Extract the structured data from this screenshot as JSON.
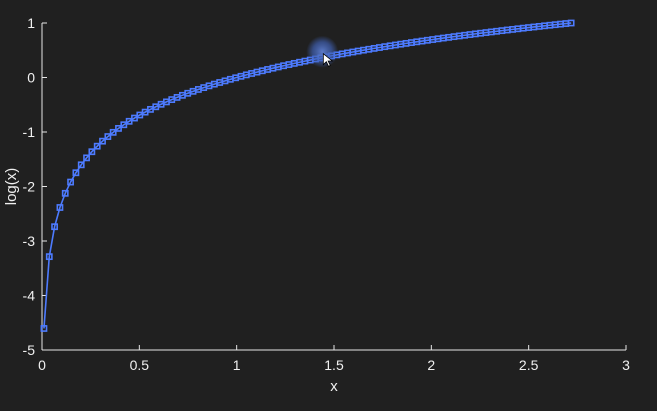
{
  "chart_data": {
    "type": "line",
    "title": "",
    "xlabel": "x",
    "ylabel": "log(x)",
    "xlim": [
      0,
      3
    ],
    "ylim": [
      -5,
      1
    ],
    "xticks": [
      0,
      0.5,
      1,
      1.5,
      2,
      2.5,
      3
    ],
    "xtick_labels": [
      "0",
      "0.5",
      "1",
      "1.5",
      "2",
      "2.5",
      "3"
    ],
    "yticks": [
      -5,
      -4,
      -3,
      -2,
      -1,
      0,
      1
    ],
    "ytick_labels": [
      "-5",
      "-4",
      "-3",
      "-2",
      "-1",
      "0",
      "1"
    ],
    "grid": false,
    "background_color": "#202020",
    "axis_color": "#e6e6e6",
    "marker": "square",
    "cursor_x": 1.44,
    "cursor_y": 0.4,
    "series": [
      {
        "color": "#4d7bff",
        "x_start": 0.01,
        "x_end": 2.7183,
        "count": 100,
        "x": [],
        "y": []
      }
    ]
  }
}
